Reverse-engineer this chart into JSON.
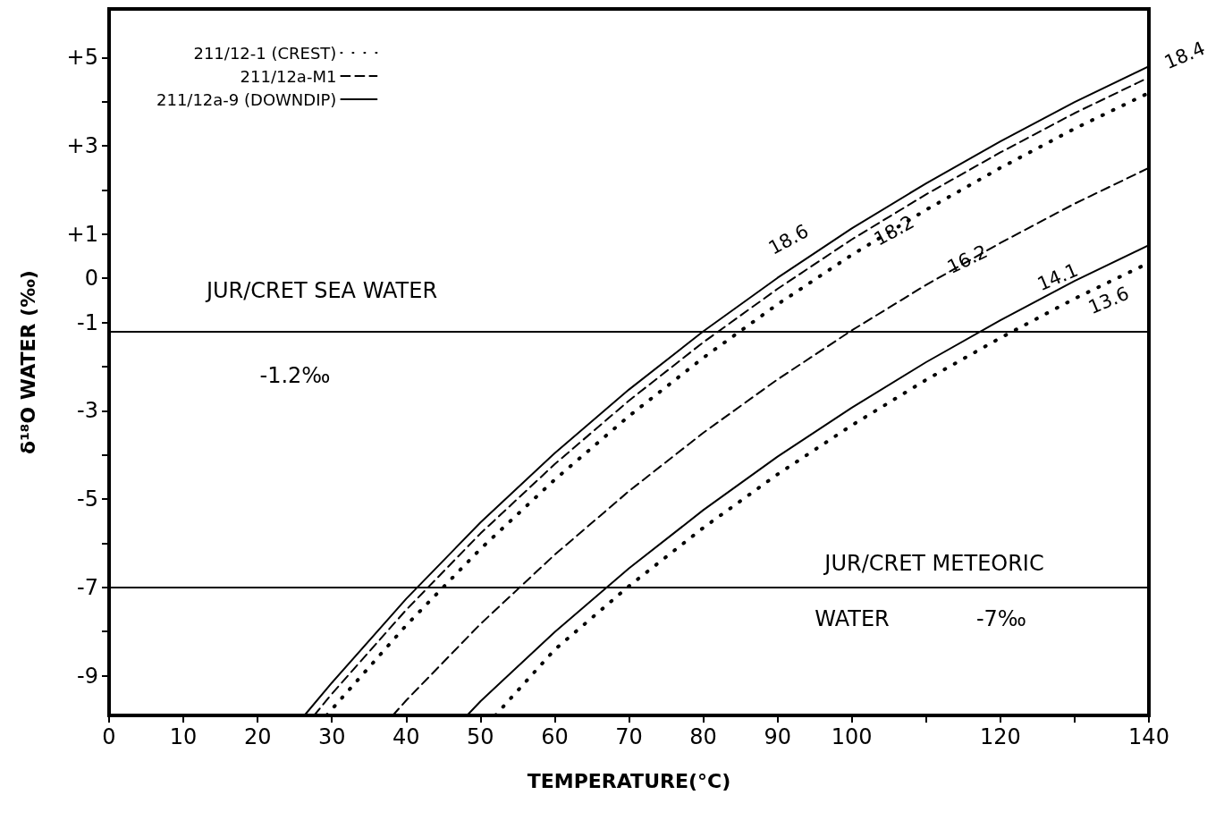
{
  "chart_data": {
    "type": "line",
    "xlabel": "TEMPERATURE(°C)",
    "ylabel": "δ¹⁸O WATER (‰)",
    "xlim": [
      0,
      140
    ],
    "xticks": [
      0,
      10,
      20,
      30,
      40,
      50,
      60,
      70,
      80,
      90,
      100,
      {
        "value": 110,
        "label": null
      },
      120,
      {
        "value": 130,
        "label": null
      },
      140
    ],
    "ylim": [
      -9.9,
      6.1
    ],
    "yticks": [
      {
        "value": 5,
        "label": "+5"
      },
      {
        "value": 4,
        "label": null
      },
      {
        "value": 3,
        "label": "+3"
      },
      {
        "value": 2,
        "label": null
      },
      {
        "value": 1,
        "label": "+1"
      },
      0,
      -1,
      {
        "value": -2,
        "label": null
      },
      -3,
      {
        "value": -4,
        "label": null
      },
      -5,
      {
        "value": -6,
        "label": null
      },
      -7,
      {
        "value": -8,
        "label": null
      },
      -9
    ],
    "grid": false,
    "legend": "top left",
    "marker": "none",
    "series": [
      {
        "name": "211/12-1 (CREST)",
        "color": "#000000",
        "line_style": "dotted",
        "x": [
          29.3,
          30,
          40,
          50,
          60,
          70,
          80,
          90,
          100,
          110,
          120,
          130,
          140
        ],
        "values": [
          -9.9,
          -9.76,
          -7.86,
          -6.13,
          -4.56,
          -3.12,
          -1.8,
          -0.59,
          0.53,
          1.55,
          2.5,
          3.39,
          4.2
        ]
      },
      {
        "name": "211/12a-M1",
        "color": "#000000",
        "line_style": "dashed",
        "x": [
          27.6,
          30,
          40,
          50,
          60,
          70,
          80,
          90,
          100,
          110,
          120,
          130,
          140
        ],
        "values": [
          -9.9,
          -9.41,
          -7.51,
          -5.78,
          -4.21,
          -2.77,
          -1.45,
          -0.24,
          0.88,
          1.9,
          2.85,
          3.74,
          4.55
        ]
      },
      {
        "name": "211/12a-9 (DOWNDIP)",
        "color": "#000000",
        "line_style": "solid",
        "x": [
          26.3,
          30,
          40,
          50,
          60,
          70,
          80,
          90,
          100,
          110,
          120,
          130,
          140
        ],
        "values": [
          -9.9,
          -9.16,
          -7.26,
          -5.53,
          -3.96,
          -2.52,
          -1.2,
          0.01,
          1.13,
          2.15,
          3.1,
          3.99,
          4.8
        ]
      },
      {
        "color": "#000000",
        "line_style": "dashed",
        "x": [
          38.2,
          40,
          50,
          60,
          70,
          80,
          90,
          100,
          110,
          120,
          130,
          140
        ],
        "values": [
          -9.9,
          -9.56,
          -7.83,
          -6.26,
          -4.82,
          -3.5,
          -2.29,
          -1.18,
          -0.15,
          0.8,
          1.69,
          2.5
        ]
      },
      {
        "color": "#000000",
        "line_style": "solid",
        "x": [
          48.2,
          50,
          60,
          70,
          80,
          90,
          100,
          110,
          120,
          130,
          140
        ],
        "values": [
          -9.9,
          -9.58,
          -8.01,
          -6.57,
          -5.25,
          -4.04,
          -2.93,
          -1.9,
          -0.95,
          -0.06,
          0.75
        ]
      },
      {
        "color": "#000000",
        "line_style": "dotted",
        "x": [
          52,
          60,
          70,
          80,
          90,
          100,
          110,
          120,
          130,
          140
        ],
        "values": [
          -9.9,
          -8.41,
          -6.97,
          -5.65,
          -4.44,
          -3.33,
          -2.3,
          -1.35,
          -0.46,
          0.35
        ]
      }
    ],
    "ref_lines": [
      {
        "axis": "y",
        "value": -1.2,
        "color": "#000000"
      },
      {
        "axis": "y",
        "value": -7,
        "color": "#000000"
      }
    ],
    "annotations": [
      "JUR/CRET SEA WATER",
      "-1.2‰",
      "JUR/CRET METEORIC",
      "WATER",
      "-7‰",
      "18.6",
      "18.2",
      "16.2",
      "14.1",
      "13.6",
      "18.4"
    ]
  }
}
